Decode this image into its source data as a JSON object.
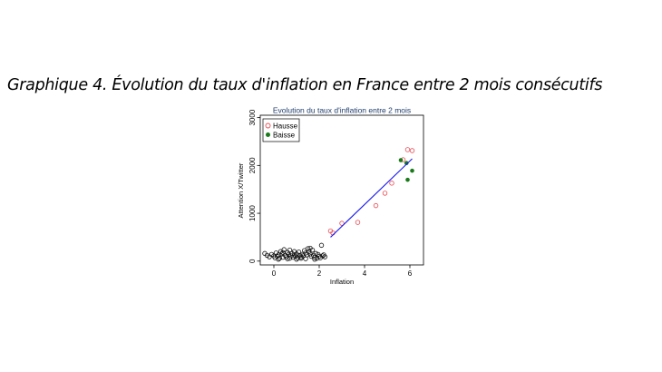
{
  "heading": "Graphique 4. Évolution du taux d'inflation en France entre 2 mois consécutifs",
  "chart_data": {
    "type": "scatter",
    "title": "Evolution du taux d'inflation entre 2 mois",
    "xlabel": "Inflation",
    "ylabel": "Attention X/Twitter",
    "xlim": [
      -0.6,
      6.6
    ],
    "ylim": [
      -80,
      3050
    ],
    "xticks": [
      0,
      2,
      4,
      6
    ],
    "yticks": [
      0,
      1000,
      2000,
      3000
    ],
    "legend_position": "top-left",
    "series": [
      {
        "name": "Hausse",
        "marker": "hollow-circle",
        "color": "#e8474f",
        "points": [
          [
            2.5,
            630
          ],
          [
            2.6,
            590
          ],
          [
            3.0,
            790
          ],
          [
            3.7,
            810
          ],
          [
            4.5,
            1160
          ],
          [
            4.9,
            1420
          ],
          [
            5.2,
            1630
          ],
          [
            5.7,
            2120
          ],
          [
            5.9,
            2330
          ],
          [
            6.1,
            2310
          ]
        ]
      },
      {
        "name": "Baisse",
        "marker": "filled-circle",
        "color": "#1a7a1a",
        "points": [
          [
            5.6,
            2110
          ],
          [
            5.85,
            2050
          ],
          [
            6.1,
            1890
          ],
          [
            5.9,
            1700
          ]
        ]
      },
      {
        "name": "",
        "marker": "hollow-circle",
        "color": "#111111",
        "points": [
          [
            -0.4,
            160
          ],
          [
            -0.3,
            120
          ],
          [
            -0.2,
            90
          ],
          [
            -0.1,
            140
          ],
          [
            0.0,
            110
          ],
          [
            0.05,
            70
          ],
          [
            0.1,
            170
          ],
          [
            0.15,
            100
          ],
          [
            0.2,
            130
          ],
          [
            0.25,
            60
          ],
          [
            0.3,
            200
          ],
          [
            0.35,
            150
          ],
          [
            0.4,
            80
          ],
          [
            0.45,
            240
          ],
          [
            0.5,
            120
          ],
          [
            0.55,
            90
          ],
          [
            0.6,
            180
          ],
          [
            0.65,
            140
          ],
          [
            0.7,
            60
          ],
          [
            0.75,
            110
          ],
          [
            0.8,
            160
          ],
          [
            0.85,
            80
          ],
          [
            0.9,
            130
          ],
          [
            0.95,
            100
          ],
          [
            1.0,
            150
          ],
          [
            1.05,
            70
          ],
          [
            1.1,
            190
          ],
          [
            1.15,
            120
          ],
          [
            1.2,
            90
          ],
          [
            1.25,
            140
          ],
          [
            1.3,
            110
          ],
          [
            1.35,
            220
          ],
          [
            1.4,
            170
          ],
          [
            1.45,
            130
          ],
          [
            1.5,
            260
          ],
          [
            1.55,
            200
          ],
          [
            1.6,
            150
          ],
          [
            1.65,
            100
          ],
          [
            1.7,
            230
          ],
          [
            1.75,
            120
          ],
          [
            1.8,
            80
          ],
          [
            1.85,
            160
          ],
          [
            1.9,
            60
          ],
          [
            1.95,
            140
          ],
          [
            2.0,
            100
          ],
          [
            2.05,
            70
          ],
          [
            2.1,
            330
          ],
          [
            2.15,
            110
          ],
          [
            2.2,
            130
          ],
          [
            2.25,
            90
          ],
          [
            0.2,
            40
          ],
          [
            0.6,
            50
          ],
          [
            1.0,
            40
          ],
          [
            1.4,
            50
          ],
          [
            1.8,
            40
          ],
          [
            0.4,
            180
          ],
          [
            0.9,
            200
          ],
          [
            1.2,
            60
          ],
          [
            0.7,
            230
          ],
          [
            1.6,
            270
          ]
        ]
      }
    ],
    "fit_line": {
      "color": "#1a1aee",
      "x": [
        2.5,
        6.1
      ],
      "y": [
        500,
        2140
      ]
    }
  }
}
